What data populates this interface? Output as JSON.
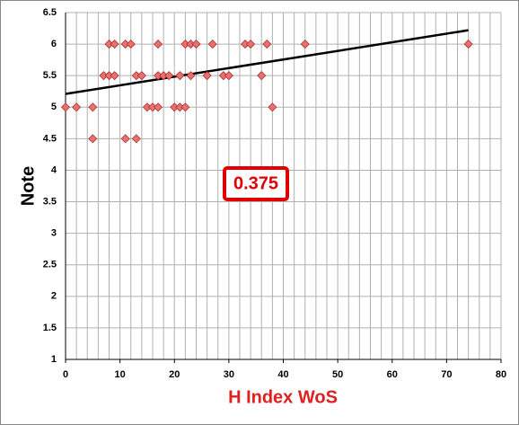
{
  "chart_data": {
    "type": "scatter",
    "x_label": "H Index WoS",
    "y_label": "Note",
    "annotation": "0.375",
    "series": [
      {
        "name": "Note",
        "color": "#e87070",
        "x": [
          8,
          9,
          11,
          12,
          17,
          22,
          23,
          24,
          27,
          33,
          34,
          37,
          44,
          74,
          7,
          8,
          9,
          13,
          14,
          17,
          18,
          19,
          21,
          23,
          26,
          29,
          30,
          36,
          0,
          2,
          5,
          15,
          16,
          17,
          20,
          21,
          22,
          38,
          5,
          11,
          13
        ],
        "values": [
          6,
          6,
          6,
          6,
          6,
          6,
          6,
          6,
          6,
          6,
          6,
          6,
          6,
          6,
          5.5,
          5.5,
          5.5,
          5.5,
          5.5,
          5.5,
          5.5,
          5.5,
          5.5,
          5.5,
          5.5,
          5.5,
          5.5,
          5.5,
          5,
          5,
          5,
          5,
          5,
          5,
          5,
          5,
          5,
          5,
          4.5,
          4.5,
          4.5
        ]
      }
    ],
    "trendline": {
      "x": [
        0,
        74
      ],
      "values": [
        5.21,
        6.22
      ],
      "color": "#000000"
    },
    "xlim": [
      0,
      80
    ],
    "ylim": [
      1,
      6.5
    ],
    "xticks": [
      0,
      10,
      20,
      30,
      40,
      50,
      60,
      70,
      80
    ],
    "yticks": [
      1,
      1.5,
      2,
      2.5,
      3,
      3.5,
      4,
      4.5,
      5,
      5.5,
      6,
      6.5
    ],
    "x_grid": [
      0,
      2,
      4,
      6,
      8,
      10,
      12,
      14,
      16,
      18,
      20,
      22,
      24,
      26,
      28,
      30,
      32,
      34,
      36,
      38,
      40,
      42,
      44,
      46,
      48,
      50,
      52,
      54,
      56,
      58,
      60,
      62,
      64,
      66,
      68,
      70,
      72,
      74,
      76,
      78,
      80
    ],
    "grid": true
  }
}
